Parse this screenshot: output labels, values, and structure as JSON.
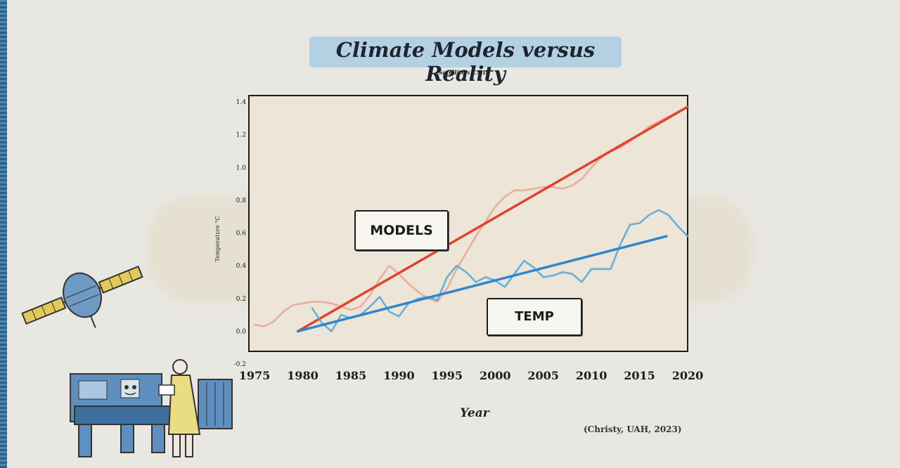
{
  "chart_data": {
    "type": "line",
    "title": "Climate Models versus Reality",
    "subtitle": "Satellite v CMIP",
    "xlabel": "Year",
    "ylabel": "Temperature °C",
    "source": "(Christy, UAH, 2023)",
    "xlim": [
      1975,
      2020
    ],
    "ylim": [
      -0.2,
      1.4
    ],
    "x_ticks": [
      "1975",
      "1980",
      "1985",
      "1990",
      "1995",
      "2000",
      "2005",
      "2010",
      "2015",
      "2020"
    ],
    "y_ticks": [
      "-0.2",
      "0.0",
      "0.2",
      "0.4",
      "0.6",
      "0.8",
      "1.0",
      "1.2",
      "1.4"
    ],
    "annotations": [
      "MODELS",
      "TEMP"
    ],
    "grid": false,
    "series": [
      {
        "name": "MODELS",
        "kind": "raw",
        "color": "#e8a898",
        "x": [
          1975,
          1976,
          1977,
          1978,
          1979,
          1980,
          1981,
          1982,
          1983,
          1984,
          1985,
          1986,
          1987,
          1988,
          1989,
          1990,
          1991,
          1992,
          1993,
          1994,
          1995,
          1996,
          1997,
          1998,
          1999,
          2000,
          2001,
          2002,
          2003,
          2004,
          2005,
          2006,
          2007,
          2008,
          2009,
          2010,
          2011,
          2012,
          2013,
          2014,
          2015,
          2016,
          2017,
          2018,
          2019,
          2020
        ],
        "y": [
          0.04,
          0.03,
          0.06,
          0.12,
          0.16,
          0.17,
          0.18,
          0.18,
          0.17,
          0.15,
          0.13,
          0.15,
          0.22,
          0.32,
          0.4,
          0.35,
          0.29,
          0.24,
          0.2,
          0.18,
          0.26,
          0.38,
          0.48,
          0.58,
          0.67,
          0.76,
          0.82,
          0.86,
          0.86,
          0.87,
          0.88,
          0.88,
          0.87,
          0.89,
          0.93,
          1.0,
          1.06,
          1.1,
          1.12,
          1.16,
          1.2,
          1.25,
          1.28,
          1.31,
          1.34,
          1.37
        ]
      },
      {
        "name": "MODELS trend",
        "kind": "trend",
        "color": "#e0432c",
        "x": [
          1979.5,
          2020
        ],
        "y": [
          0.0,
          1.37
        ]
      },
      {
        "name": "TEMP",
        "kind": "raw",
        "color": "#5aaad6",
        "x": [
          1981,
          1982,
          1983,
          1984,
          1985,
          1986,
          1987,
          1988,
          1989,
          1990,
          1991,
          1992,
          1993,
          1994,
          1995,
          1996,
          1997,
          1998,
          1999,
          2000,
          2001,
          2002,
          2003,
          2004,
          2005,
          2006,
          2007,
          2008,
          2009,
          2010,
          2011,
          2012,
          2013,
          2014,
          2015,
          2016,
          2017,
          2018,
          2019,
          2020
        ],
        "y": [
          0.14,
          0.05,
          0.0,
          0.1,
          0.08,
          0.1,
          0.15,
          0.21,
          0.12,
          0.09,
          0.17,
          0.2,
          0.21,
          0.19,
          0.33,
          0.4,
          0.36,
          0.3,
          0.33,
          0.31,
          0.27,
          0.35,
          0.43,
          0.39,
          0.33,
          0.34,
          0.36,
          0.35,
          0.3,
          0.38,
          0.38,
          0.38,
          0.53,
          0.65,
          0.66,
          0.71,
          0.74,
          0.71,
          0.64,
          0.58
        ]
      },
      {
        "name": "TEMP trend",
        "kind": "trend",
        "color": "#2f86cc",
        "x": [
          1979.5,
          2017.8
        ],
        "y": [
          0.0,
          0.58
        ]
      }
    ]
  }
}
